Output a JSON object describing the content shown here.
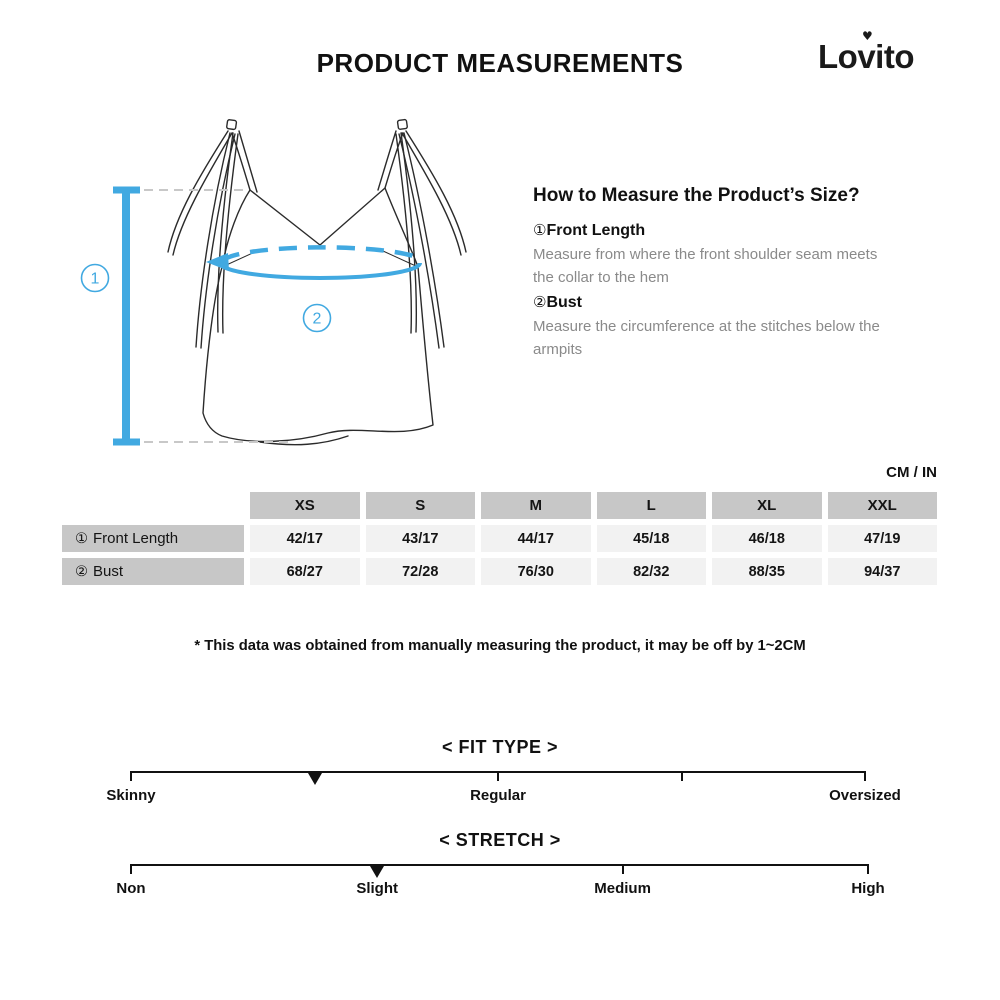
{
  "header": {
    "title": "PRODUCT MEASUREMENTS",
    "brand": "Lovito"
  },
  "diagram": {
    "front_length_marker": "1",
    "bust_marker": "2",
    "accent_color": "#41A9E1"
  },
  "how_to": {
    "title": "How to Measure the Product’s Size?",
    "items": [
      {
        "num": "①",
        "name": "Front Length",
        "desc": "Measure from where the front shoulder seam meets the collar to the hem"
      },
      {
        "num": "②",
        "name": "Bust",
        "desc": "Measure the circumference at the stitches below the armpits"
      }
    ]
  },
  "units_label": "CM / IN",
  "size_table": {
    "columns": [
      "XS",
      "S",
      "M",
      "L",
      "XL",
      "XXL"
    ],
    "rows": [
      {
        "num": "①",
        "label": "Front Length",
        "values": [
          "42/17",
          "43/17",
          "44/17",
          "45/18",
          "46/18",
          "47/19"
        ]
      },
      {
        "num": "②",
        "label": "Bust",
        "values": [
          "68/27",
          "72/28",
          "76/30",
          "82/32",
          "88/35",
          "94/37"
        ]
      }
    ]
  },
  "disclaimer": "* This data was obtained from manually measuring the product, it may be off by 1~2CM",
  "scales": {
    "fit_type": {
      "title": "< FIT TYPE >",
      "labels": [
        "Skinny",
        "Regular",
        "Oversized"
      ],
      "marker_position_percent": 25
    },
    "stretch": {
      "title": "< STRETCH >",
      "labels": [
        "Non",
        "Slight",
        "Medium",
        "High"
      ],
      "marker_position_percent": 33.4
    }
  }
}
